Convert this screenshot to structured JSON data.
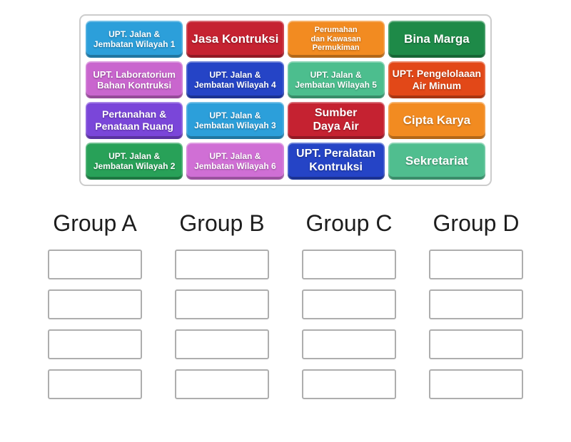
{
  "colors": {
    "background": "#ffffff",
    "panel_border": "#cccccc",
    "slot_border": "#aeaeae",
    "header_text": "#1d1d1d",
    "tile_text": "#ffffff"
  },
  "tiles": [
    {
      "label": "UPT. Jalan &\nJembatan Wilayah 1",
      "color": "#2C9FDA",
      "font_size": 12
    },
    {
      "label": "Jasa Kontruksi",
      "color": "#C52231",
      "font_size": 17
    },
    {
      "label": "Perumahan\ndan Kawasan\nPermukiman",
      "color": "#F28B21",
      "font_size": 11
    },
    {
      "label": "Bina Marga",
      "color": "#1E8A48",
      "font_size": 17
    },
    {
      "label": "UPT. Laboratorium\nBahan Kontruksi",
      "color": "#C966CE",
      "font_size": 13
    },
    {
      "label": "UPT. Jalan &\nJembatan Wilayah 4",
      "color": "#2544C6",
      "font_size": 12
    },
    {
      "label": "UPT. Jalan &\nJembatan Wilayah 5",
      "color": "#4CBE8E",
      "font_size": 12
    },
    {
      "label": "UPT. Pengelolaaan\nAir Minum",
      "color": "#E24818",
      "font_size": 14
    },
    {
      "label": "Pertanahan &\nPenataan Ruang",
      "color": "#7A46D9",
      "font_size": 14
    },
    {
      "label": "UPT. Jalan &\nJembatan Wilayah 3",
      "color": "#2C9FDA",
      "font_size": 12
    },
    {
      "label": "Sumber\nDaya Air",
      "color": "#C52231",
      "font_size": 16
    },
    {
      "label": "Cipta Karya",
      "color": "#F28B21",
      "font_size": 17
    },
    {
      "label": "UPT. Jalan &\nJembatan Wilayah 2",
      "color": "#28A158",
      "font_size": 12
    },
    {
      "label": "UPT. Jalan &\nJembatan Wilayah 6",
      "color": "#D06FD5",
      "font_size": 12
    },
    {
      "label": "UPT. Peralatan\nKontruksi",
      "color": "#2544C6",
      "font_size": 16
    },
    {
      "label": "Sekretariat",
      "color": "#50BE8F",
      "font_size": 17
    }
  ],
  "groups": [
    {
      "label": "Group A",
      "empty_slots": 4
    },
    {
      "label": "Group B",
      "empty_slots": 4
    },
    {
      "label": "Group C",
      "empty_slots": 4
    },
    {
      "label": "Group D",
      "empty_slots": 4
    }
  ]
}
